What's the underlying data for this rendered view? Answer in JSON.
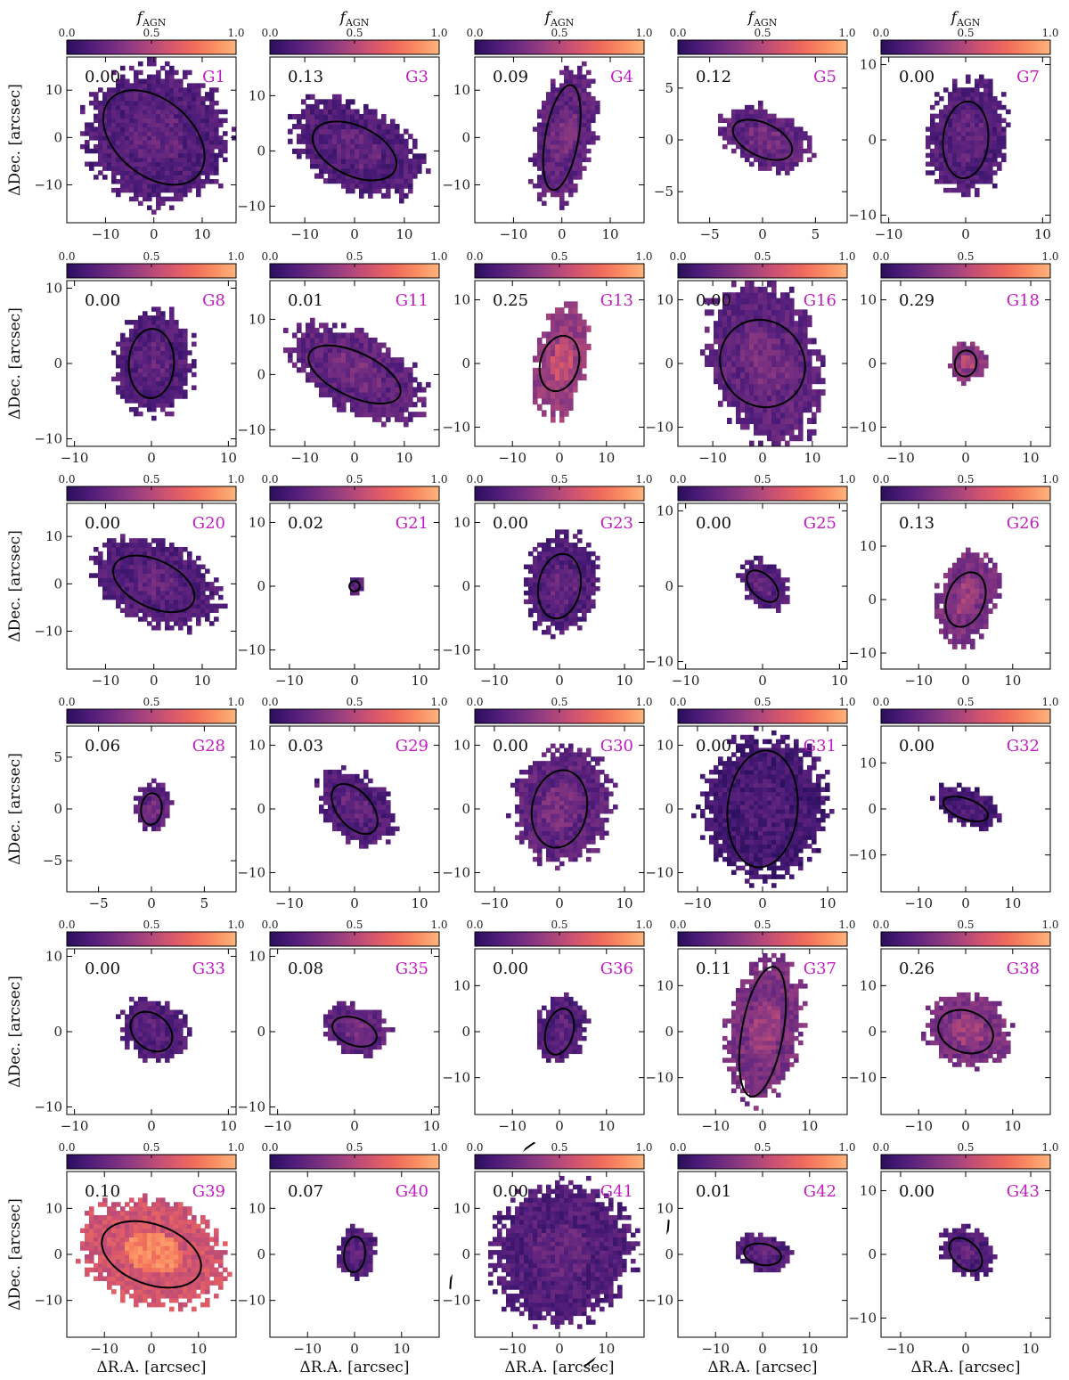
{
  "figure": {
    "xlabel": "ΔR.A. [arcsec]",
    "ylabel": "ΔDec. [arcsec]",
    "colorbar_label": "f_AGN",
    "colorbar_label_main": "f",
    "colorbar_label_sub": "AGN",
    "colorbar_ticks": [
      "0.0",
      "0.5",
      "1.0"
    ],
    "colormap": [
      "#2a0f5c",
      "#4b1b78",
      "#6c2a80",
      "#8f3a80",
      "#b4497a",
      "#d8586c",
      "#f06c5c",
      "#fa8e63",
      "#fdb47d"
    ]
  },
  "chart_data": [
    {
      "type": "heatmap",
      "name": "G1",
      "value": "0.00",
      "xlim": [
        -18,
        17
      ],
      "ylim": [
        -18,
        17
      ],
      "xticks": [
        -10,
        0,
        10
      ],
      "yticks": [
        -10,
        0,
        10
      ],
      "ellipse": {
        "cx": 0,
        "cy": 0,
        "a": 12,
        "b": 8,
        "angle": -40
      },
      "mean_fagn": 0.15
    },
    {
      "type": "heatmap",
      "name": "G3",
      "value": "0.13",
      "xlim": [
        -17,
        17
      ],
      "ylim": [
        -13,
        17
      ],
      "xticks": [
        -10,
        0,
        10
      ],
      "yticks": [
        -10,
        0,
        10
      ],
      "ellipse": {
        "cx": 0,
        "cy": 0,
        "a": 9,
        "b": 4.5,
        "angle": -25
      },
      "mean_fagn": 0.15
    },
    {
      "type": "heatmap",
      "name": "G4",
      "value": "0.09",
      "xlim": [
        -18,
        17
      ],
      "ylim": [
        -18,
        17
      ],
      "xticks": [
        -10,
        0,
        10
      ],
      "yticks": [
        -10,
        0,
        10
      ],
      "ellipse": {
        "cx": 0,
        "cy": 0,
        "a": 11,
        "b": 3.5,
        "angle": 80
      },
      "mean_fagn": 0.2
    },
    {
      "type": "heatmap",
      "name": "G5",
      "value": "0.12",
      "xlim": [
        -8,
        8
      ],
      "ylim": [
        -8,
        8
      ],
      "xticks": [
        -5,
        0,
        5
      ],
      "yticks": [
        -5,
        0,
        5
      ],
      "ellipse": {
        "cx": 0,
        "cy": 0,
        "a": 3,
        "b": 1.6,
        "angle": -25
      },
      "mean_fagn": 0.2
    },
    {
      "type": "heatmap",
      "name": "G7",
      "value": "0.00",
      "xlim": [
        -11,
        11
      ],
      "ylim": [
        -11,
        11
      ],
      "xticks": [
        -10,
        0,
        10
      ],
      "yticks": [
        -10,
        0,
        10
      ],
      "ellipse": {
        "cx": 0,
        "cy": 0,
        "a": 5,
        "b": 3,
        "angle": 85
      },
      "mean_fagn": 0.15
    },
    {
      "type": "heatmap",
      "name": "G8",
      "value": "0.00",
      "xlim": [
        -11,
        11
      ],
      "ylim": [
        -11,
        11
      ],
      "xticks": [
        -10,
        0,
        10
      ],
      "yticks": [
        -10,
        0,
        10
      ],
      "ellipse": {
        "cx": 0,
        "cy": 0,
        "a": 4.5,
        "b": 3,
        "angle": 88
      },
      "mean_fagn": 0.15
    },
    {
      "type": "heatmap",
      "name": "G11",
      "value": "0.01",
      "xlim": [
        -17,
        17
      ],
      "ylim": [
        -13,
        17
      ],
      "xticks": [
        -10,
        0,
        10
      ],
      "yticks": [
        -10,
        0,
        10
      ],
      "ellipse": {
        "cx": 0,
        "cy": 0,
        "a": 10,
        "b": 4,
        "angle": -25
      },
      "mean_fagn": 0.2
    },
    {
      "type": "heatmap",
      "name": "G13",
      "value": "0.25",
      "xlim": [
        -18,
        18
      ],
      "ylim": [
        -13,
        13
      ],
      "xticks": [
        -10,
        0,
        10
      ],
      "yticks": [
        -10,
        0,
        10
      ],
      "ellipse": {
        "cx": 0,
        "cy": 0,
        "a": 6,
        "b": 3,
        "angle": 75
      },
      "mean_fagn": 0.4
    },
    {
      "type": "heatmap",
      "name": "G16",
      "value": "0.00",
      "xlim": [
        -17,
        17
      ],
      "ylim": [
        -13,
        13
      ],
      "xticks": [
        -10,
        0,
        10
      ],
      "yticks": [
        -10,
        0,
        10
      ],
      "ellipse": {
        "cx": 0,
        "cy": 0,
        "a": 9,
        "b": 6.5,
        "angle": -55
      },
      "mean_fagn": 0.2
    },
    {
      "type": "heatmap",
      "name": "G18",
      "value": "0.29",
      "xlim": [
        -13,
        13
      ],
      "ylim": [
        -13,
        13
      ],
      "xticks": [
        -10,
        0,
        10
      ],
      "yticks": [
        -10,
        0,
        10
      ],
      "ellipse": {
        "cx": 0,
        "cy": 0,
        "a": 2,
        "b": 1.7,
        "angle": 80
      },
      "mean_fagn": 0.35
    },
    {
      "type": "heatmap",
      "name": "G20",
      "value": "0.00",
      "xlim": [
        -18,
        17
      ],
      "ylim": [
        -18,
        17
      ],
      "xticks": [
        -10,
        0,
        10
      ],
      "yticks": [
        -10,
        0,
        10
      ],
      "ellipse": {
        "cx": 0,
        "cy": 0,
        "a": 9,
        "b": 5,
        "angle": -25
      },
      "mean_fagn": 0.15
    },
    {
      "type": "heatmap",
      "name": "G21",
      "value": "0.02",
      "xlim": [
        -13,
        13
      ],
      "ylim": [
        -13,
        13
      ],
      "xticks": [
        -10,
        0,
        10
      ],
      "yticks": [
        -10,
        0,
        10
      ],
      "ellipse": {
        "cx": 0,
        "cy": 0,
        "a": 0.8,
        "b": 0.8,
        "angle": 0
      },
      "mean_fagn": 0.2
    },
    {
      "type": "heatmap",
      "name": "G23",
      "value": "0.00",
      "xlim": [
        -13,
        13
      ],
      "ylim": [
        -13,
        13
      ],
      "xticks": [
        -10,
        0,
        10
      ],
      "yticks": [
        -10,
        0,
        10
      ],
      "ellipse": {
        "cx": 0,
        "cy": 0,
        "a": 5,
        "b": 3.3,
        "angle": 80
      },
      "mean_fagn": 0.15
    },
    {
      "type": "heatmap",
      "name": "G25",
      "value": "0.00",
      "xlim": [
        -11,
        11
      ],
      "ylim": [
        -11,
        11
      ],
      "xticks": [
        -10,
        0,
        10
      ],
      "yticks": [
        -10,
        0,
        10
      ],
      "ellipse": {
        "cx": 0,
        "cy": 0,
        "a": 2.5,
        "b": 1.5,
        "angle": -45
      },
      "mean_fagn": 0.15
    },
    {
      "type": "heatmap",
      "name": "G26",
      "value": "0.13",
      "xlim": [
        -18,
        18
      ],
      "ylim": [
        -13,
        18
      ],
      "xticks": [
        -10,
        0,
        10
      ],
      "yticks": [
        -10,
        0,
        10
      ],
      "ellipse": {
        "cx": 0,
        "cy": 0,
        "a": 6,
        "b": 3.5,
        "angle": 70
      },
      "mean_fagn": 0.3
    },
    {
      "type": "heatmap",
      "name": "G28",
      "value": "0.06",
      "xlim": [
        -8,
        8
      ],
      "ylim": [
        -8,
        8
      ],
      "xticks": [
        -5,
        0,
        5
      ],
      "yticks": [
        -5,
        0,
        5
      ],
      "ellipse": {
        "cx": 0,
        "cy": 0,
        "a": 1.5,
        "b": 1.0,
        "angle": 85
      },
      "mean_fagn": 0.2
    },
    {
      "type": "heatmap",
      "name": "G29",
      "value": "0.03",
      "xlim": [
        -13,
        13
      ],
      "ylim": [
        -13,
        13
      ],
      "xticks": [
        -10,
        0,
        10
      ],
      "yticks": [
        -10,
        0,
        10
      ],
      "ellipse": {
        "cx": 0,
        "cy": 0,
        "a": 4.5,
        "b": 2.7,
        "angle": -50
      },
      "mean_fagn": 0.15
    },
    {
      "type": "heatmap",
      "name": "G30",
      "value": "0.00",
      "xlim": [
        -13,
        13
      ],
      "ylim": [
        -13,
        13
      ],
      "xticks": [
        -10,
        0,
        10
      ],
      "yticks": [
        -10,
        0,
        10
      ],
      "ellipse": {
        "cx": 0,
        "cy": 0,
        "a": 6,
        "b": 4.3,
        "angle": 80
      },
      "mean_fagn": 0.2
    },
    {
      "type": "heatmap",
      "name": "G31",
      "value": "0.00",
      "xlim": [
        -13,
        13
      ],
      "ylim": [
        -13,
        13
      ],
      "xticks": [
        -10,
        0,
        10
      ],
      "yticks": [
        -10,
        0,
        10
      ],
      "ellipse": {
        "cx": 0,
        "cy": 0,
        "a": 9,
        "b": 5.5,
        "angle": 85
      },
      "mean_fagn": 0.1
    },
    {
      "type": "heatmap",
      "name": "G32",
      "value": "0.00",
      "xlim": [
        -18,
        18
      ],
      "ylim": [
        -18,
        18
      ],
      "xticks": [
        -10,
        0,
        10
      ],
      "yticks": [
        -10,
        0,
        10
      ],
      "ellipse": {
        "cx": 0,
        "cy": 0,
        "a": 5,
        "b": 2.2,
        "angle": -20
      },
      "mean_fagn": 0.1
    },
    {
      "type": "heatmap",
      "name": "G33",
      "value": "0.00",
      "xlim": [
        -11,
        11
      ],
      "ylim": [
        -11,
        11
      ],
      "xticks": [
        -10,
        0,
        10
      ],
      "yticks": [
        -10,
        0,
        10
      ],
      "ellipse": {
        "cx": 0,
        "cy": 0,
        "a": 3,
        "b": 2.3,
        "angle": -40
      },
      "mean_fagn": 0.15
    },
    {
      "type": "heatmap",
      "name": "G35",
      "value": "0.08",
      "xlim": [
        -11,
        11
      ],
      "ylim": [
        -11,
        11
      ],
      "xticks": [
        -10,
        0,
        10
      ],
      "yticks": [
        -10,
        0,
        10
      ],
      "ellipse": {
        "cx": 0,
        "cy": 0,
        "a": 3,
        "b": 1.8,
        "angle": -20
      },
      "mean_fagn": 0.2
    },
    {
      "type": "heatmap",
      "name": "G36",
      "value": "0.00",
      "xlim": [
        -18,
        18
      ],
      "ylim": [
        -18,
        18
      ],
      "xticks": [
        -10,
        0,
        10
      ],
      "yticks": [
        -10,
        0,
        10
      ],
      "ellipse": {
        "cx": 0,
        "cy": 0,
        "a": 5,
        "b": 3,
        "angle": 75
      },
      "mean_fagn": 0.15
    },
    {
      "type": "heatmap",
      "name": "G37",
      "value": "0.11",
      "xlim": [
        -18,
        18
      ],
      "ylim": [
        -18,
        18
      ],
      "xticks": [
        -10,
        0,
        10
      ],
      "yticks": [
        -10,
        0,
        10
      ],
      "ellipse": {
        "cx": 0,
        "cy": 0,
        "a": 14,
        "b": 4.5,
        "angle": 80
      },
      "mean_fagn": 0.3
    },
    {
      "type": "heatmap",
      "name": "G38",
      "value": "0.26",
      "xlim": [
        -18,
        18
      ],
      "ylim": [
        -18,
        18
      ],
      "xticks": [
        -10,
        0,
        10
      ],
      "yticks": [
        -10,
        0,
        10
      ],
      "ellipse": {
        "cx": 0,
        "cy": 0,
        "a": 6,
        "b": 4.5,
        "angle": -20
      },
      "mean_fagn": 0.3
    },
    {
      "type": "heatmap",
      "name": "G39",
      "value": "0.10",
      "xlim": [
        -18,
        18
      ],
      "ylim": [
        -18,
        18
      ],
      "xticks": [
        -10,
        0,
        10
      ],
      "yticks": [
        -10,
        0,
        10
      ],
      "ellipse": {
        "cx": 0,
        "cy": 0,
        "a": 11,
        "b": 6.5,
        "angle": -20
      },
      "mean_fagn": 0.6
    },
    {
      "type": "heatmap",
      "name": "G40",
      "value": "0.07",
      "xlim": [
        -18,
        18
      ],
      "ylim": [
        -18,
        18
      ],
      "xticks": [
        -10,
        0,
        10
      ],
      "yticks": [
        -10,
        0,
        10
      ],
      "ellipse": {
        "cx": 0,
        "cy": 0,
        "a": 3.8,
        "b": 2.3,
        "angle": 85
      },
      "mean_fagn": 0.15
    },
    {
      "type": "heatmap",
      "name": "G41",
      "value": "0.00",
      "xlim": [
        -18,
        18
      ],
      "ylim": [
        -18,
        18
      ],
      "xticks": [
        -10,
        0,
        10
      ],
      "yticks": [
        -10,
        0,
        10
      ],
      "ellipse": {
        "cx": 0,
        "cy": 0,
        "a": 30,
        "b": 21,
        "angle": 60
      },
      "mean_fagn": 0.15
    },
    {
      "type": "heatmap",
      "name": "G42",
      "value": "0.01",
      "xlim": [
        -18,
        18
      ],
      "ylim": [
        -18,
        18
      ],
      "xticks": [
        -10,
        0,
        10
      ],
      "yticks": [
        -10,
        0,
        10
      ],
      "ellipse": {
        "cx": 0,
        "cy": 0,
        "a": 4,
        "b": 2.3,
        "angle": -10
      },
      "mean_fagn": 0.15
    },
    {
      "type": "heatmap",
      "name": "G43",
      "value": "0.00",
      "xlim": [
        -13,
        13
      ],
      "ylim": [
        -13,
        13
      ],
      "xticks": [
        -10,
        0,
        10
      ],
      "yticks": [
        -10,
        0,
        10
      ],
      "ellipse": {
        "cx": 0,
        "cy": 0,
        "a": 3,
        "b": 2,
        "angle": -45
      },
      "mean_fagn": 0.15
    }
  ]
}
